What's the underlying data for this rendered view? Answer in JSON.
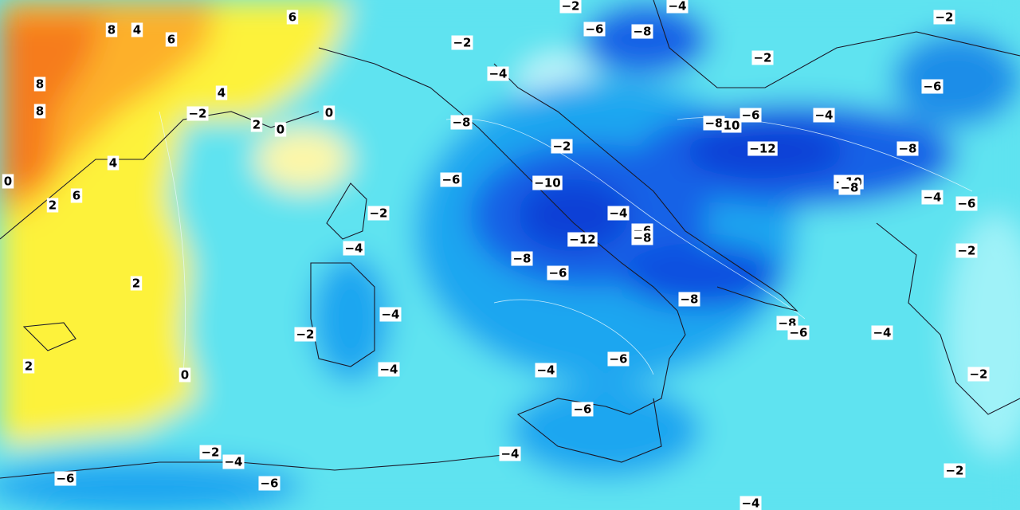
{
  "map": {
    "labels": [
      "8",
      "4",
      "6",
      "6",
      "8",
      "8",
      "4",
      "−2",
      "2",
      "0",
      "0",
      "4",
      "0",
      "6",
      "2",
      "2",
      "2",
      "0",
      "−2",
      "−4",
      "−2",
      "−6",
      "−8",
      "−2",
      "−2",
      "−4",
      "−6",
      "−8",
      "−6",
      "−4",
      "−8",
      "10",
      "−2",
      "−12",
      "−8",
      "−6",
      "−10",
      "−10",
      "−8",
      "−4",
      "−6",
      "−2",
      "−4",
      "−6",
      "−8",
      "−12",
      "−4",
      "−8",
      "−6",
      "−2",
      "−8",
      "−4",
      "−8",
      "−6",
      "−4",
      "−2",
      "−4",
      "−4",
      "−6",
      "−2",
      "−6",
      "−4",
      "−2",
      "−4",
      "−6",
      "−6",
      "−2",
      "−4"
    ]
  }
}
